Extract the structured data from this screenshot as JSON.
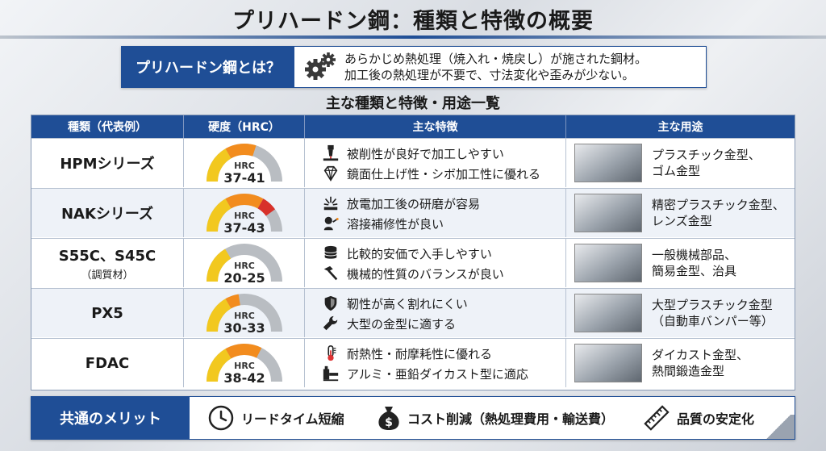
{
  "title": "プリハードン鋼：種類と特徴の概要",
  "definition": {
    "label": "プリハードン鋼とは？",
    "icon": "gears-icon",
    "lines": [
      "あらかじめ熱処理（焼入れ・焼戻し）が施された鋼材。",
      "加工後の熱処理が不要で、寸法変化や歪みが少ない。"
    ]
  },
  "subtitle": "主な種類と特徴・用途一覧",
  "table": {
    "headers": [
      "種類（代表例）",
      "硬度（HRC）",
      "主な特徴",
      "主な用途"
    ],
    "rows": [
      {
        "name": "HPMシリーズ",
        "sub": "",
        "gauge": {
          "label": "HRC",
          "range": "37-41",
          "level": 0.6
        },
        "features": [
          {
            "icon": "end-mill-icon",
            "text": "被削性が良好で加工しやすい"
          },
          {
            "icon": "diamond-icon",
            "text": "鏡面仕上げ性・シボ加工性に優れる"
          }
        ],
        "use": [
          "プラスチック金型、",
          "ゴム金型"
        ],
        "image": "plastic-mold-image"
      },
      {
        "name": "NAKシリーズ",
        "sub": "",
        "gauge": {
          "label": "HRC",
          "range": "37-43",
          "level": 0.8
        },
        "features": [
          {
            "icon": "spark-icon",
            "text": "放電加工後の研磨が容易"
          },
          {
            "icon": "welder-icon",
            "text": "溶接補修性が良い"
          }
        ],
        "use": [
          "精密プラスチック金型、",
          "レンズ金型"
        ],
        "image": "precision-mold-image"
      },
      {
        "name": "S55C、S45C",
        "sub": "（調質材）",
        "gauge": {
          "label": "HRC",
          "range": "20-25",
          "level": 0.33
        },
        "features": [
          {
            "icon": "coins-icon",
            "text": "比較的安価で入手しやすい"
          },
          {
            "icon": "hammer-icon",
            "text": "機械的性質のバランスが良い"
          }
        ],
        "use": [
          "一般機械部品、",
          "簡易金型、治具"
        ],
        "image": "machine-parts-image"
      },
      {
        "name": "PX5",
        "sub": "",
        "gauge": {
          "label": "HRC",
          "range": "30-33",
          "level": 0.45
        },
        "features": [
          {
            "icon": "shield-icon",
            "text": "靭性が高く割れにくい"
          },
          {
            "icon": "wrench-icon",
            "text": "大型の金型に適する"
          }
        ],
        "use": [
          "大型プラスチック金型",
          "（自動車バンパー等）"
        ],
        "image": "bumper-mold-image"
      },
      {
        "name": "FDAC",
        "sub": "",
        "gauge": {
          "label": "HRC",
          "range": "38-42",
          "level": 0.65
        },
        "features": [
          {
            "icon": "thermometer-icon",
            "text": "耐熱性・耐摩耗性に優れる"
          },
          {
            "icon": "die-cast-machine-icon",
            "text": "アルミ・亜鉛ダイカスト型に適応"
          }
        ],
        "use": [
          "ダイカスト金型、",
          "熱間鍛造金型"
        ],
        "image": "die-cast-mold-image"
      }
    ]
  },
  "merits": {
    "label": "共通のメリット",
    "items": [
      {
        "icon": "clock-icon",
        "text": "リードタイム短縮"
      },
      {
        "icon": "money-bag-icon",
        "text": "コスト削減（熱処理費用・輸送費）"
      },
      {
        "icon": "ruler-icon",
        "text": "品質の安定化"
      }
    ]
  },
  "colors": {
    "primary": "#1f4e96",
    "gauge_gray": "#b9bdc2",
    "gauge_yellow": "#f2c81f",
    "gauge_orange": "#f28c1e",
    "gauge_red": "#d8312a"
  }
}
